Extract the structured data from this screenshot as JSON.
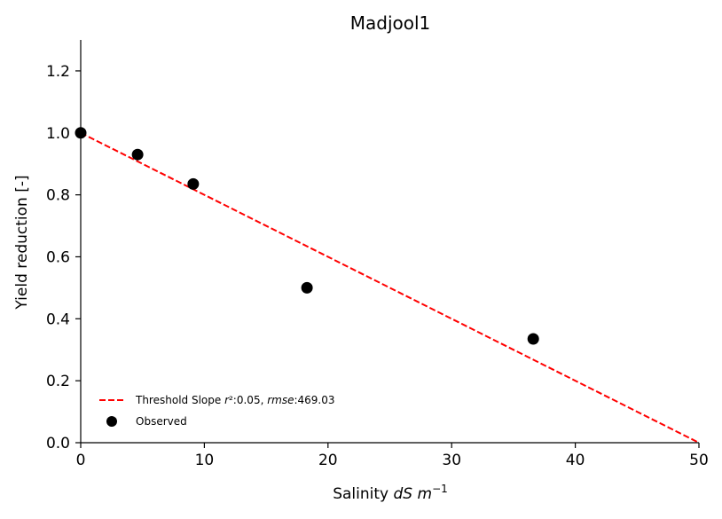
{
  "chart_data": {
    "type": "scatter",
    "title": "Madjool1",
    "xlabel": {
      "prefix": "Salinity ",
      "var": "dS m",
      "sup": "−1"
    },
    "ylabel": "Yield reduction [-]",
    "xlim": [
      0,
      50
    ],
    "ylim": [
      0,
      1.3
    ],
    "xticks": [
      0,
      10,
      20,
      30,
      40,
      50
    ],
    "yticks": [
      0.0,
      0.2,
      0.4,
      0.6,
      0.8,
      1.0,
      1.2
    ],
    "xtick_labels": [
      "0",
      "10",
      "20",
      "30",
      "40",
      "50"
    ],
    "ytick_labels": [
      "0.0",
      "0.2",
      "0.4",
      "0.6",
      "0.8",
      "1.0",
      "1.2"
    ],
    "grid": false,
    "legend_position": "lower-left",
    "series": [
      {
        "name": "Threshold Slope",
        "legend": {
          "prefix": "Threshold Slope ",
          "r2_label": "r²:0.05, ",
          "rmse_label": "rmse",
          "rmse_value": ":469.03"
        },
        "kind": "line",
        "style": "dashed",
        "color": "#ff0000",
        "x": [
          0,
          50
        ],
        "y": [
          1.0,
          0.0
        ]
      },
      {
        "name": "Observed",
        "legend": {
          "prefix": "Observed"
        },
        "kind": "scatter",
        "color": "#000000",
        "x": [
          0,
          4.6,
          9.1,
          18.3,
          36.6
        ],
        "y": [
          1.0,
          0.93,
          0.835,
          0.5,
          0.335
        ]
      }
    ]
  }
}
